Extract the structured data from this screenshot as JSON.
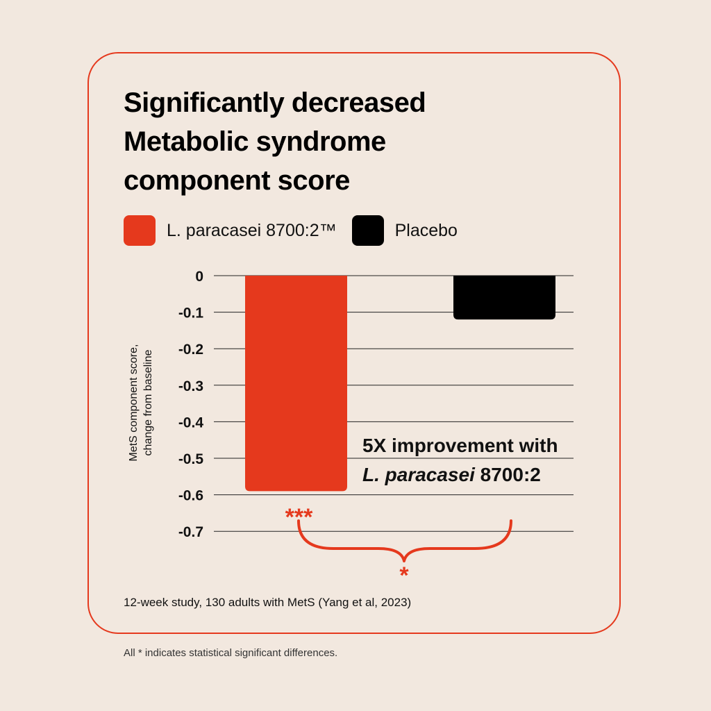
{
  "title_lines": [
    "Significantly decreased",
    "Metabolic syndrome",
    "component score"
  ],
  "legend": [
    {
      "label": "L. paracasei 8700:2™",
      "color": "#e5391d"
    },
    {
      "label": "Placebo",
      "color": "#000000"
    }
  ],
  "chart_data": {
    "type": "bar",
    "title": "Significantly decreased Metabolic syndrome component score",
    "categories": [
      "L. paracasei 8700:2™",
      "Placebo"
    ],
    "values": [
      -0.59,
      -0.12
    ],
    "colors": [
      "#e5391d",
      "#000000"
    ],
    "ylabel_lines": [
      "MetS component score,",
      "change from baseline"
    ],
    "yticks": [
      0,
      -0.1,
      -0.2,
      -0.3,
      -0.4,
      -0.5,
      -0.6,
      -0.7
    ],
    "ytick_labels": [
      "0",
      "-0.1",
      "-0.2",
      "-0.3",
      "-0.4",
      "-0.5",
      "-0.6",
      "-0.7"
    ],
    "ylim": [
      -0.7,
      0
    ],
    "grid": true,
    "significance": {
      "bar": "***",
      "comparison": "*"
    }
  },
  "annotation": {
    "line1": "5X improvement with",
    "line2_italic": "L. paracasei",
    "line2_rest": " 8700:2"
  },
  "source": "12-week study, 130 adults with MetS (Yang et al, 2023)",
  "footnote": "All * indicates statistical significant differences."
}
